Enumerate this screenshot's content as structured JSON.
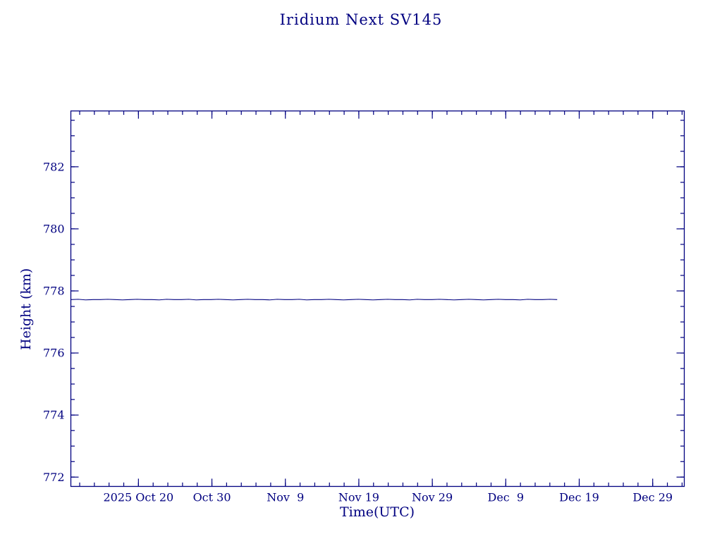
{
  "colors": {
    "accent": "#000080",
    "background": "#ffffff"
  },
  "chart_data": {
    "type": "line",
    "title": "Iridium Next SV145",
    "xlabel": "Time(UTC)",
    "ylabel": "Height (km)",
    "line_color": "#000080",
    "ylim": [
      771.7,
      783.8
    ],
    "y_major_ticks": [
      772,
      774,
      776,
      778,
      780,
      782
    ],
    "y_minor_step": 0.5,
    "x_domain_days": [
      -9.2,
      74.3
    ],
    "x_minor_step": 2,
    "x_ticks": [
      {
        "day": 0,
        "label": "2025 Oct 20"
      },
      {
        "day": 10,
        "label": "Oct 30"
      },
      {
        "day": 20,
        "label": "Nov  9"
      },
      {
        "day": 30,
        "label": "Nov 19"
      },
      {
        "day": 40,
        "label": "Nov 29"
      },
      {
        "day": 50,
        "label": "Dec  9"
      },
      {
        "day": 60,
        "label": "Dec 19"
      },
      {
        "day": 70,
        "label": "Dec 29"
      }
    ],
    "series": [
      {
        "name": "height_km",
        "x_range_days": [
          -9.2,
          57.0
        ],
        "values": [
          777.72,
          777.73,
          777.71,
          777.72,
          777.72,
          777.73,
          777.72,
          777.71,
          777.72,
          777.73,
          777.72,
          777.72,
          777.71,
          777.73,
          777.72,
          777.72,
          777.73,
          777.71,
          777.72,
          777.72,
          777.73,
          777.72,
          777.71,
          777.72,
          777.73,
          777.72,
          777.72,
          777.71,
          777.73,
          777.72,
          777.72,
          777.73,
          777.71,
          777.72,
          777.72,
          777.73,
          777.72,
          777.71,
          777.72,
          777.73,
          777.72,
          777.71,
          777.72,
          777.73,
          777.72,
          777.72,
          777.71,
          777.73,
          777.72,
          777.72,
          777.73,
          777.72,
          777.71,
          777.72,
          777.73,
          777.72,
          777.71,
          777.72,
          777.73,
          777.72,
          777.72,
          777.71,
          777.73,
          777.72,
          777.72,
          777.73,
          777.72
        ]
      }
    ]
  }
}
